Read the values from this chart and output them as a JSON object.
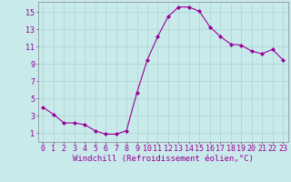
{
  "x": [
    0,
    1,
    2,
    3,
    4,
    5,
    6,
    7,
    8,
    9,
    10,
    11,
    12,
    13,
    14,
    15,
    16,
    17,
    18,
    19,
    20,
    21,
    22,
    23
  ],
  "y": [
    4.0,
    3.2,
    2.2,
    2.2,
    2.0,
    1.3,
    0.9,
    0.9,
    1.3,
    5.7,
    9.5,
    12.2,
    14.5,
    15.6,
    15.6,
    15.1,
    13.3,
    12.2,
    11.3,
    11.2,
    10.5,
    10.2,
    10.7,
    9.5
  ],
  "line_color": "#990099",
  "marker": "D",
  "marker_size": 2.0,
  "bg_color": "#c8eaea",
  "grid_color": "#b0d8d8",
  "xlabel": "Windchill (Refroidissement éolien,°C)",
  "xlabel_fontsize": 6.5,
  "tick_color": "#990099",
  "tick_fontsize": 6.0,
  "yticks": [
    1,
    3,
    5,
    7,
    9,
    11,
    13,
    15
  ],
  "xticks": [
    0,
    1,
    2,
    3,
    4,
    5,
    6,
    7,
    8,
    9,
    10,
    11,
    12,
    13,
    14,
    15,
    16,
    17,
    18,
    19,
    20,
    21,
    22,
    23
  ],
  "ylim": [
    0.0,
    16.2
  ],
  "xlim": [
    -0.5,
    23.5
  ],
  "spine_color": "#888888"
}
